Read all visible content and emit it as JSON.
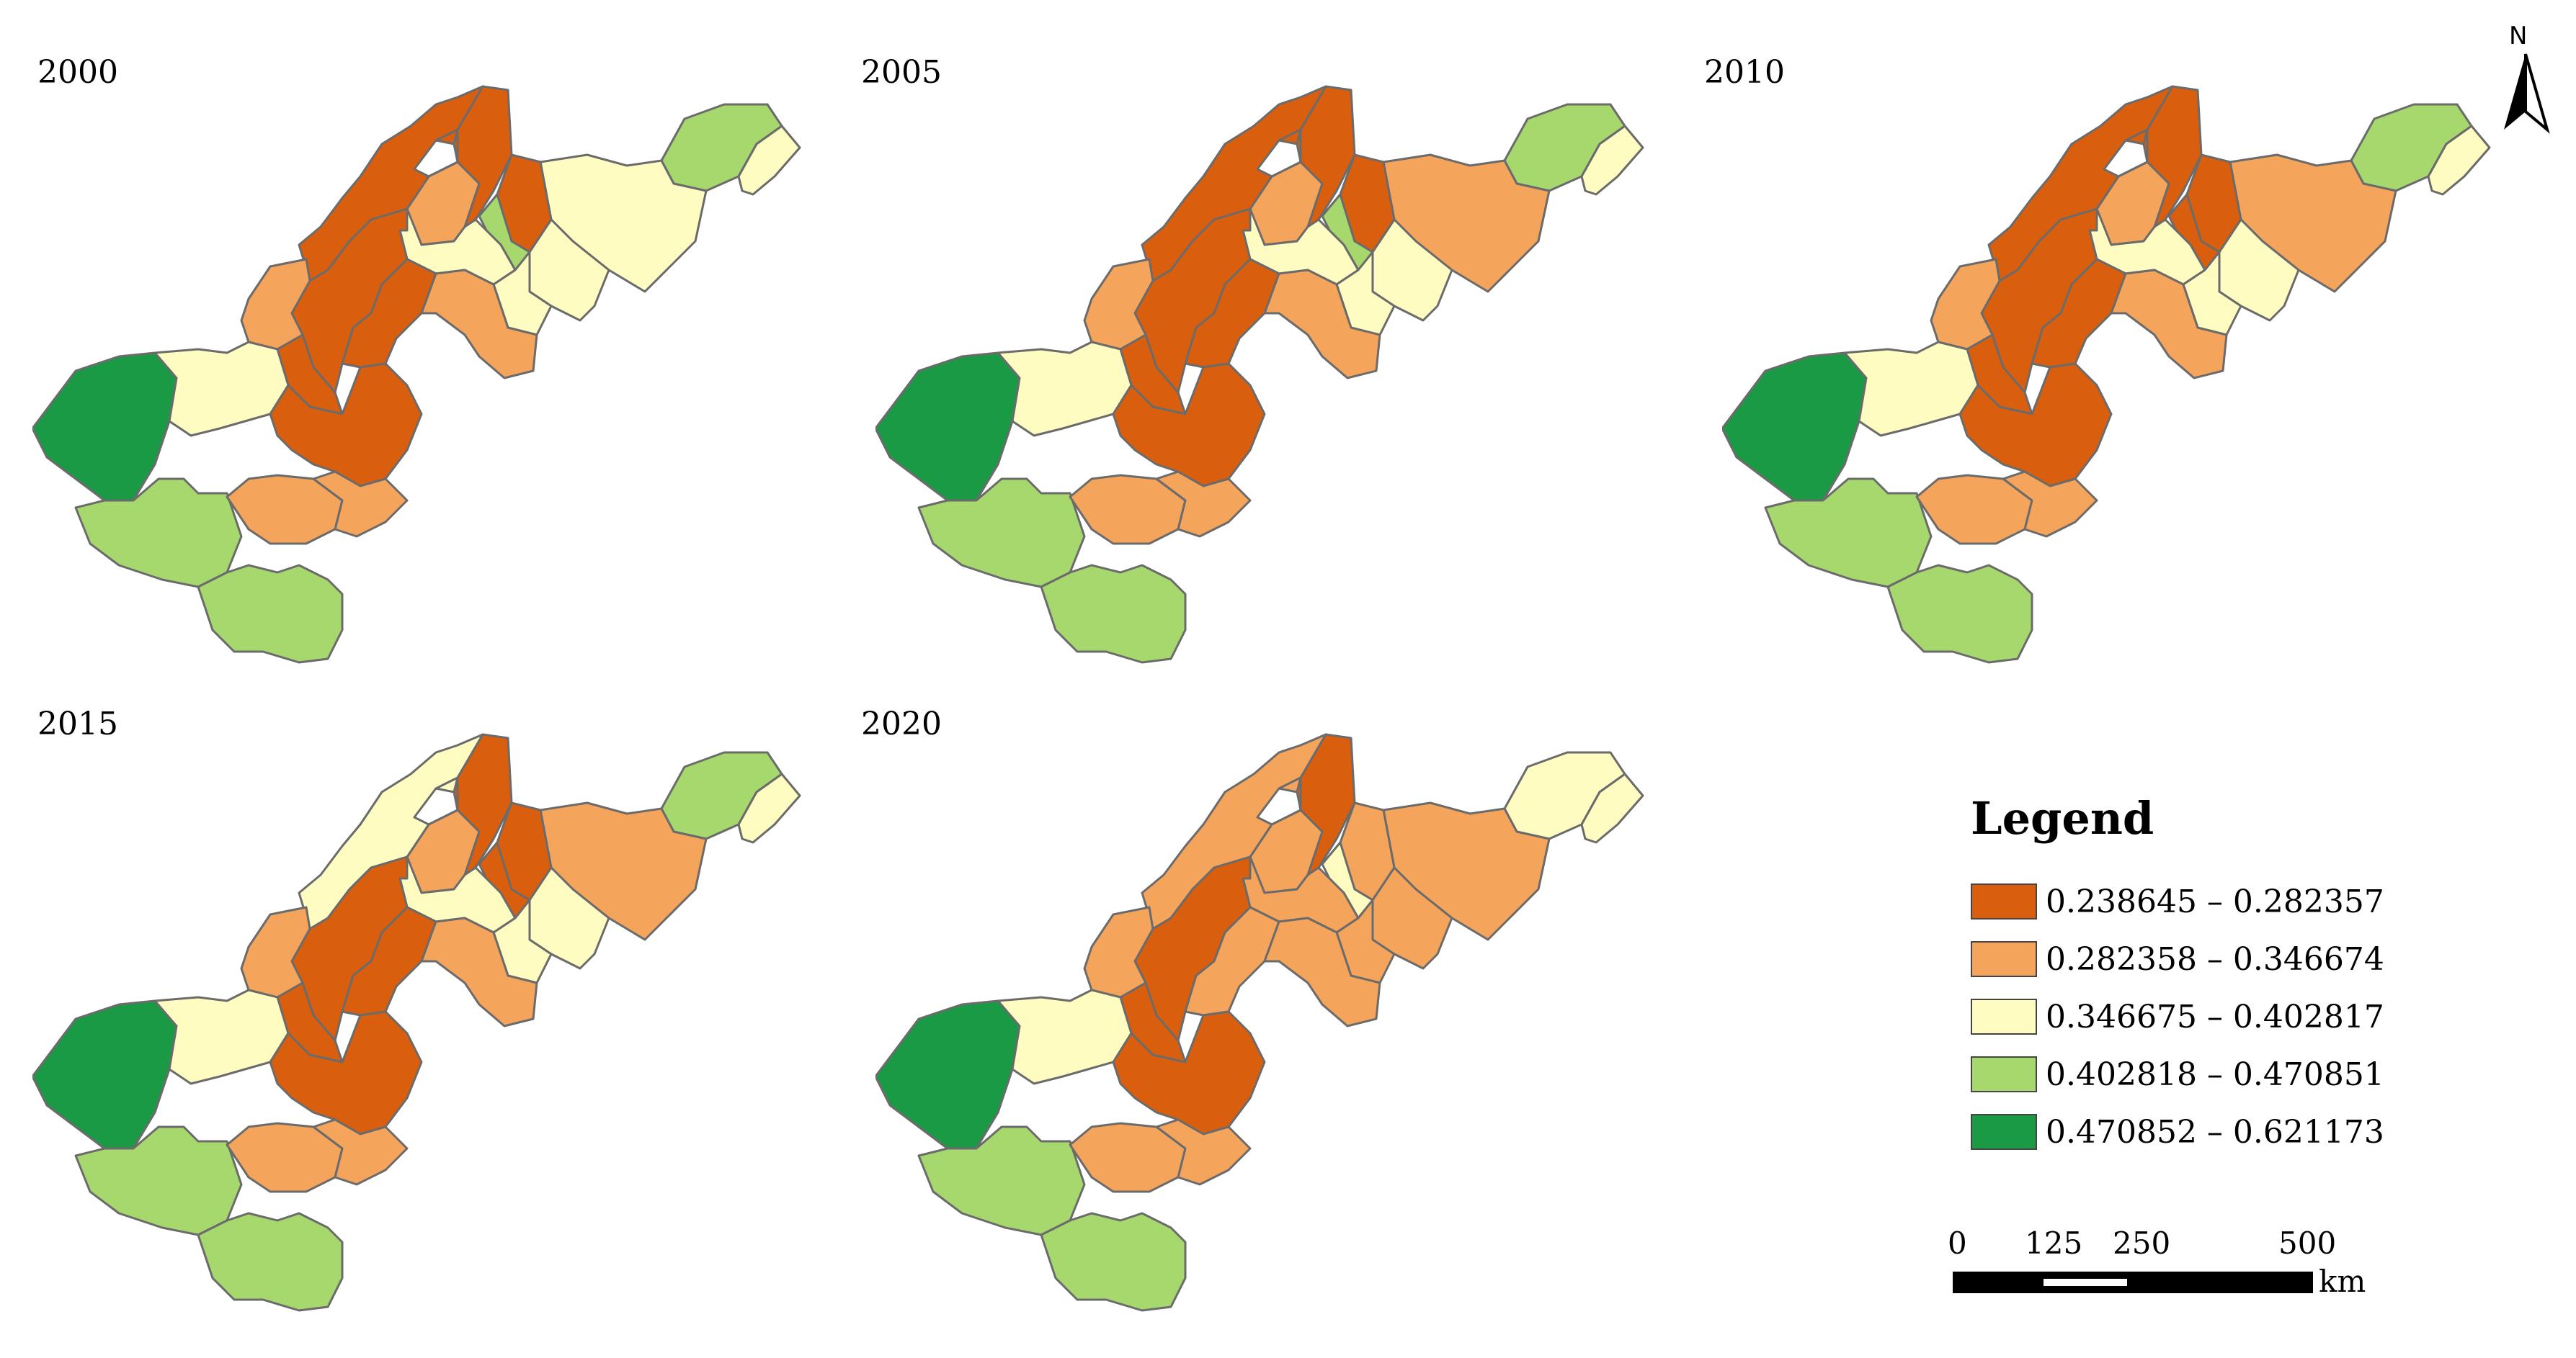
{
  "panels": [
    {
      "year": "2000",
      "colors": [
        "c4",
        "c3",
        "c3",
        "c1",
        "c1",
        "c4",
        "c2",
        "c1",
        "c3",
        "c3",
        "c3",
        "c1",
        "c2",
        "c1",
        "c1",
        "c2",
        "c5",
        "c3",
        "c4",
        "c2",
        "c4",
        "c1",
        "c2"
      ]
    },
    {
      "year": "2005",
      "colors": [
        "c4",
        "c3",
        "c2",
        "c1",
        "c1",
        "c4",
        "c2",
        "c1",
        "c3",
        "c3",
        "c3",
        "c1",
        "c2",
        "c1",
        "c1",
        "c2",
        "c5",
        "c3",
        "c4",
        "c2",
        "c4",
        "c1",
        "c2"
      ]
    },
    {
      "year": "2010",
      "colors": [
        "c4",
        "c3",
        "c2",
        "c1",
        "c1",
        "c1",
        "c2",
        "c1",
        "c3",
        "c3",
        "c3",
        "c1",
        "c2",
        "c1",
        "c1",
        "c2",
        "c5",
        "c3",
        "c4",
        "c2",
        "c4",
        "c1",
        "c2"
      ]
    },
    {
      "year": "2015",
      "colors": [
        "c4",
        "c3",
        "c2",
        "c1",
        "c1",
        "c1",
        "c2",
        "c3",
        "c3",
        "c3",
        "c3",
        "c1",
        "c2",
        "c1",
        "c1",
        "c2",
        "c5",
        "c3",
        "c4",
        "c2",
        "c4",
        "c1",
        "c2"
      ]
    },
    {
      "year": "2020",
      "colors": [
        "c3",
        "c3",
        "c2",
        "c1",
        "c2",
        "c3",
        "c2",
        "c2",
        "c2",
        "c2",
        "c2",
        "c1",
        "c2",
        "c1",
        "c2",
        "c2",
        "c5",
        "c3",
        "c4",
        "c2",
        "c4",
        "c1",
        "c2"
      ]
    }
  ],
  "legend": {
    "title": "Legend",
    "classes": [
      {
        "key": "c1",
        "label": "0.238645 – 0.282357",
        "color": "#d95f0e"
      },
      {
        "key": "c2",
        "label": "0.282358 – 0.346674",
        "color": "#f5a45c"
      },
      {
        "key": "c3",
        "label": "0.346675 – 0.402817",
        "color": "#fefcc0"
      },
      {
        "key": "c4",
        "label": "0.402818 – 0.470851",
        "color": "#a6d86e"
      },
      {
        "key": "c5",
        "label": "0.470852 – 0.621173",
        "color": "#1a9a45"
      }
    ]
  },
  "scale_bar": {
    "ticks": [
      "0",
      "125",
      "250",
      "500"
    ],
    "unit": "km"
  },
  "north_arrow": {
    "label": "N",
    "icon": "north-arrow-icon"
  }
}
